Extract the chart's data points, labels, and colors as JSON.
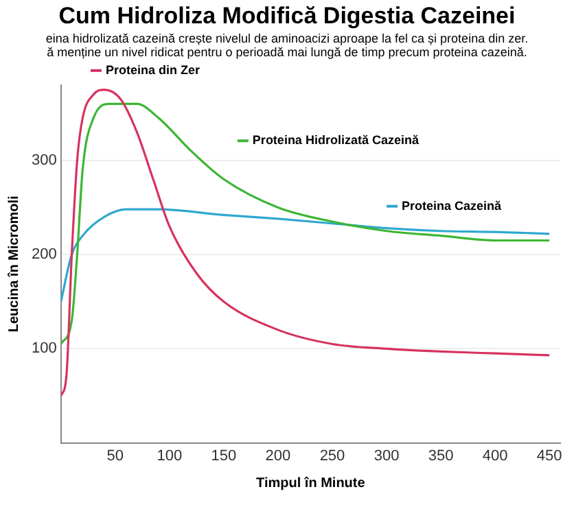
{
  "chart_data": {
    "type": "line",
    "title": "Cum Hidroliza Modifică Digestia Cazeinei",
    "subtitle": "eina hidrolizată cazeină crește nivelul de aminoacizi aproape la fel ca și proteina din zer.\nă menține un nivel ridicat pentru o perioadă mai lungă de timp precum proteina cazeină.",
    "xlabel": "Timpul în Minute",
    "ylabel": "Leucina în Micromoli",
    "xlim": [
      0,
      460
    ],
    "xticks": [
      50,
      100,
      150,
      200,
      250,
      300,
      350,
      400,
      450
    ],
    "ylim": [
      0,
      380
    ],
    "yticks": [
      100,
      200,
      300
    ],
    "grid": "y",
    "legend": "top",
    "marker": "none",
    "line_style": "solid",
    "series": [
      {
        "name": "Proteina din Zer",
        "color": "#d6335e",
        "x": [
          0,
          5,
          10,
          15,
          20,
          30,
          40,
          55,
          70,
          85,
          100,
          125,
          150,
          200,
          250,
          300,
          350,
          400,
          450
        ],
        "values": [
          50,
          70,
          200,
          300,
          345,
          370,
          375,
          365,
          330,
          280,
          230,
          180,
          150,
          120,
          105,
          100,
          97,
          95,
          93
        ]
      },
      {
        "name": "Proteina Hidrolizată Cazeină",
        "color": "#3cb534",
        "x": [
          0,
          10,
          15,
          20,
          30,
          45,
          70,
          90,
          120,
          150,
          200,
          250,
          300,
          350,
          400,
          450
        ],
        "values": [
          105,
          130,
          200,
          290,
          345,
          360,
          360,
          345,
          310,
          280,
          250,
          235,
          225,
          220,
          215,
          215
        ]
      },
      {
        "name": "Proteina Cazeină",
        "color": "#2fa8d0",
        "x": [
          0,
          10,
          20,
          40,
          60,
          90,
          150,
          200,
          250,
          300,
          350,
          400,
          450
        ],
        "values": [
          150,
          200,
          220,
          240,
          248,
          248,
          242,
          238,
          233,
          228,
          225,
          224,
          222
        ]
      }
    ]
  }
}
